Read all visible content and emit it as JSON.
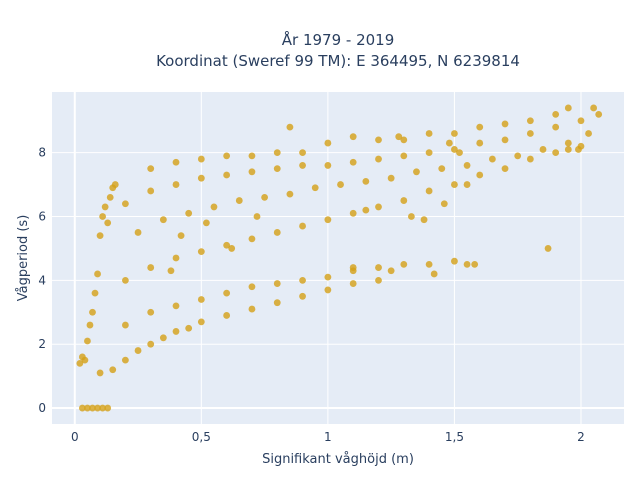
{
  "chart_data": {
    "type": "scatter",
    "title_lines": [
      "År 1979 - 2019",
      "Koordinat (Sweref 99 TM): E 364495, N 6239814"
    ],
    "xlabel": "Signifikant våghöjd (m)",
    "ylabel": "Vågperiod (s)",
    "xlim": [
      -0.09,
      2.17
    ],
    "ylim": [
      -0.5,
      9.9
    ],
    "x_ticks": [
      0,
      0.5,
      1,
      1.5,
      2
    ],
    "x_tick_labels": [
      "0",
      "0,5",
      "1",
      "1,5",
      "2"
    ],
    "y_ticks": [
      0,
      2,
      4,
      6,
      8
    ],
    "y_tick_labels": [
      "0",
      "2",
      "4",
      "6",
      "8"
    ],
    "grid": true,
    "marker_color": "#D4A017",
    "plot_background": "#E5ECF6",
    "series": [
      {
        "points": [
          [
            0.03,
            0
          ],
          [
            0.05,
            0
          ],
          [
            0.07,
            0
          ],
          [
            0.09,
            0
          ],
          [
            0.11,
            0
          ],
          [
            0.13,
            0
          ],
          [
            0.02,
            1.4
          ],
          [
            0.03,
            1.6
          ],
          [
            0.04,
            1.5
          ],
          [
            0.05,
            2.1
          ],
          [
            0.06,
            2.6
          ],
          [
            0.07,
            3.0
          ],
          [
            0.08,
            3.6
          ],
          [
            0.09,
            4.2
          ],
          [
            0.1,
            5.4
          ],
          [
            0.11,
            6.0
          ],
          [
            0.12,
            6.3
          ],
          [
            0.13,
            5.8
          ],
          [
            0.14,
            6.6
          ],
          [
            0.15,
            6.9
          ],
          [
            0.16,
            7.0
          ],
          [
            0.1,
            1.1
          ],
          [
            0.15,
            1.2
          ],
          [
            0.2,
            1.5
          ],
          [
            0.25,
            1.8
          ],
          [
            0.3,
            2.0
          ],
          [
            0.35,
            2.2
          ],
          [
            0.4,
            2.4
          ],
          [
            0.45,
            2.5
          ],
          [
            0.5,
            2.7
          ],
          [
            0.6,
            2.9
          ],
          [
            0.7,
            3.1
          ],
          [
            0.8,
            3.3
          ],
          [
            0.9,
            3.5
          ],
          [
            1.0,
            3.7
          ],
          [
            1.1,
            3.9
          ],
          [
            1.2,
            4.0
          ],
          [
            0.2,
            2.6
          ],
          [
            0.3,
            3.0
          ],
          [
            0.4,
            3.2
          ],
          [
            0.5,
            3.4
          ],
          [
            0.6,
            3.6
          ],
          [
            0.7,
            3.8
          ],
          [
            0.8,
            3.9
          ],
          [
            0.9,
            4.0
          ],
          [
            1.0,
            4.1
          ],
          [
            1.1,
            4.3
          ],
          [
            1.2,
            4.4
          ],
          [
            1.3,
            4.5
          ],
          [
            1.4,
            4.5
          ],
          [
            1.5,
            4.6
          ],
          [
            1.55,
            4.5
          ],
          [
            0.2,
            4.0
          ],
          [
            0.3,
            4.4
          ],
          [
            0.4,
            4.7
          ],
          [
            0.5,
            4.9
          ],
          [
            0.6,
            5.1
          ],
          [
            0.7,
            5.3
          ],
          [
            0.8,
            5.5
          ],
          [
            0.9,
            5.7
          ],
          [
            1.0,
            5.9
          ],
          [
            1.1,
            6.1
          ],
          [
            1.2,
            6.3
          ],
          [
            1.3,
            6.5
          ],
          [
            1.4,
            6.8
          ],
          [
            1.5,
            7.0
          ],
          [
            1.6,
            7.3
          ],
          [
            1.7,
            7.5
          ],
          [
            1.8,
            7.8
          ],
          [
            1.9,
            8.0
          ],
          [
            2.0,
            8.2
          ],
          [
            0.2,
            6.4
          ],
          [
            0.3,
            6.8
          ],
          [
            0.4,
            7.0
          ],
          [
            0.5,
            7.2
          ],
          [
            0.6,
            7.3
          ],
          [
            0.7,
            7.4
          ],
          [
            0.8,
            7.5
          ],
          [
            0.9,
            7.6
          ],
          [
            1.0,
            7.6
          ],
          [
            1.1,
            7.7
          ],
          [
            1.2,
            7.8
          ],
          [
            1.3,
            7.9
          ],
          [
            1.4,
            8.0
          ],
          [
            1.5,
            8.1
          ],
          [
            1.6,
            8.3
          ],
          [
            1.7,
            8.4
          ],
          [
            1.8,
            8.6
          ],
          [
            1.9,
            8.8
          ],
          [
            2.0,
            9.0
          ],
          [
            0.25,
            5.5
          ],
          [
            0.35,
            5.9
          ],
          [
            0.45,
            6.1
          ],
          [
            0.55,
            6.3
          ],
          [
            0.65,
            6.5
          ],
          [
            0.75,
            6.6
          ],
          [
            0.85,
            6.7
          ],
          [
            0.95,
            6.9
          ],
          [
            1.05,
            7.0
          ],
          [
            1.15,
            7.1
          ],
          [
            1.25,
            7.2
          ],
          [
            1.35,
            7.4
          ],
          [
            1.45,
            7.5
          ],
          [
            1.55,
            7.6
          ],
          [
            1.65,
            7.8
          ],
          [
            1.75,
            7.9
          ],
          [
            1.85,
            8.1
          ],
          [
            1.95,
            8.3
          ],
          [
            0.3,
            7.5
          ],
          [
            0.4,
            7.7
          ],
          [
            0.5,
            7.8
          ],
          [
            0.6,
            7.9
          ],
          [
            0.7,
            7.9
          ],
          [
            0.8,
            8.0
          ],
          [
            0.9,
            8.0
          ],
          [
            1.0,
            8.3
          ],
          [
            1.1,
            8.5
          ],
          [
            1.2,
            8.4
          ],
          [
            1.3,
            8.4
          ],
          [
            1.4,
            8.6
          ],
          [
            1.5,
            8.6
          ],
          [
            1.6,
            8.8
          ],
          [
            1.7,
            8.9
          ],
          [
            1.8,
            9.0
          ],
          [
            1.9,
            9.2
          ],
          [
            1.95,
            9.4
          ],
          [
            2.05,
            9.4
          ],
          [
            2.07,
            9.2
          ],
          [
            2.03,
            8.6
          ],
          [
            1.99,
            8.1
          ],
          [
            1.95,
            8.1
          ],
          [
            1.87,
            5.0
          ],
          [
            0.85,
            8.8
          ],
          [
            1.28,
            8.5
          ],
          [
            1.48,
            8.3
          ],
          [
            1.52,
            8.0
          ],
          [
            1.15,
            6.2
          ],
          [
            0.62,
            5.0
          ],
          [
            0.38,
            4.3
          ],
          [
            0.42,
            5.4
          ],
          [
            0.52,
            5.8
          ],
          [
            0.72,
            6.0
          ],
          [
            1.33,
            6.0
          ],
          [
            1.38,
            5.9
          ],
          [
            1.46,
            6.4
          ],
          [
            1.55,
            7.0
          ],
          [
            1.58,
            4.5
          ],
          [
            1.42,
            4.2
          ],
          [
            1.1,
            4.4
          ],
          [
            1.25,
            4.3
          ]
        ]
      }
    ]
  }
}
